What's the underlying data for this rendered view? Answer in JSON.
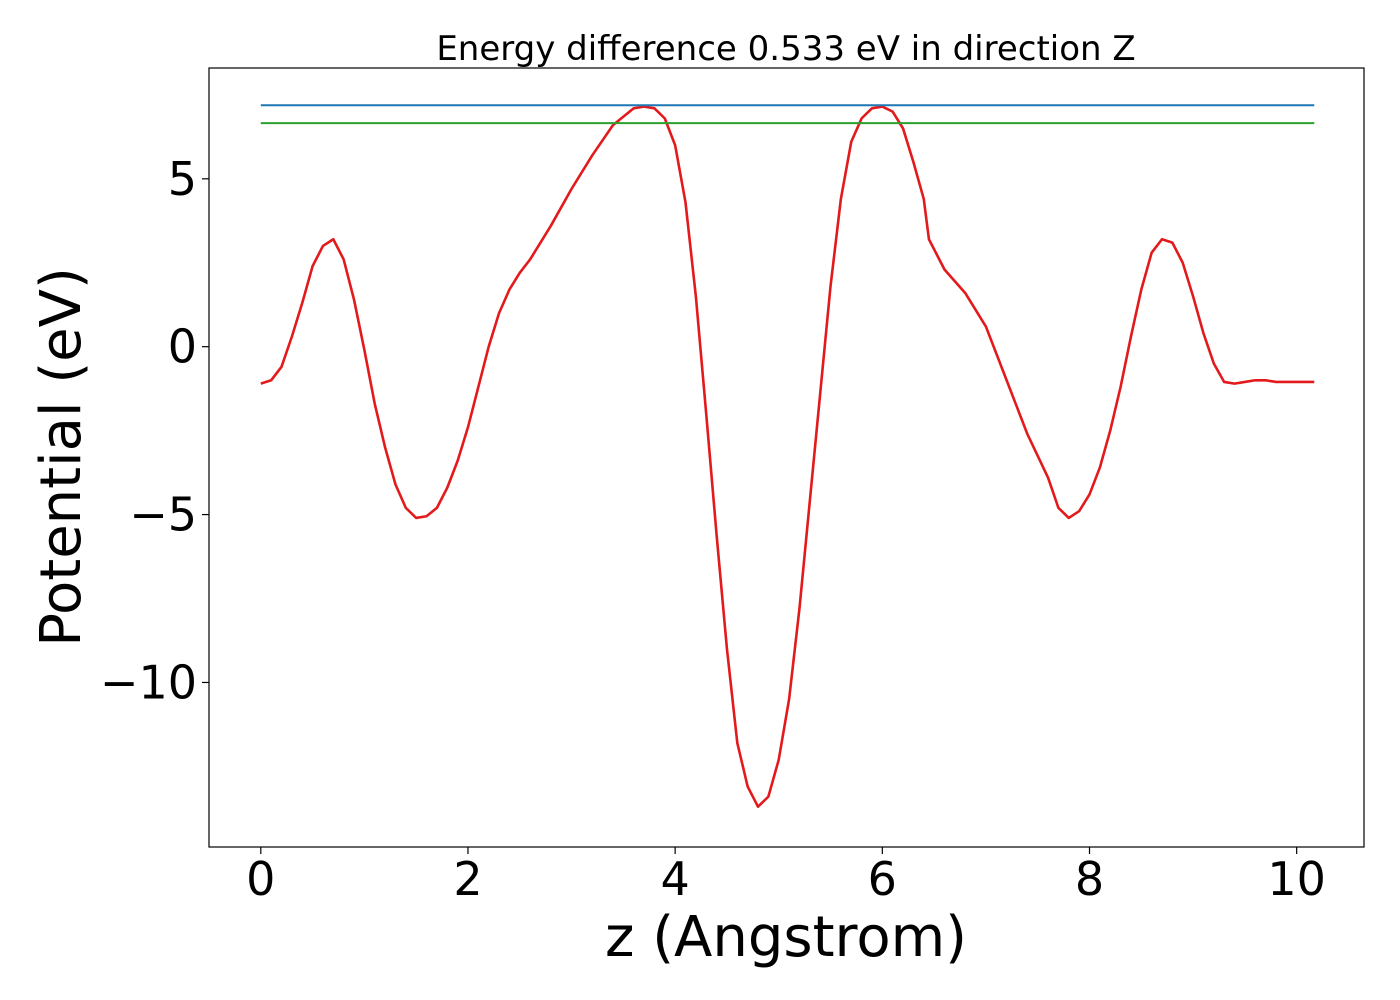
{
  "chart_data": {
    "type": "line",
    "title": "Energy difference 0.533 eV in direction Z",
    "xlabel": "z (Angstrom)",
    "ylabel": "Potential (eV)",
    "xlim": [
      -0.5,
      10.65
    ],
    "ylim": [
      -14.9,
      8.3
    ],
    "xticks": [
      0,
      2,
      4,
      6,
      8,
      10
    ],
    "xtick_labels": [
      "0",
      "2",
      "4",
      "6",
      "8",
      "10"
    ],
    "yticks": [
      5,
      0,
      -5,
      -10
    ],
    "ytick_labels": [
      "5",
      "0",
      "−5",
      "−10"
    ],
    "grid": false,
    "legend": null,
    "series": [
      {
        "color": "#e31a1c",
        "x": [
          0.0,
          0.1,
          0.2,
          0.3,
          0.4,
          0.5,
          0.6,
          0.7,
          0.8,
          0.9,
          1.0,
          1.1,
          1.2,
          1.3,
          1.4,
          1.5,
          1.6,
          1.7,
          1.8,
          1.9,
          2.0,
          2.1,
          2.2,
          2.3,
          2.4,
          2.5,
          2.6,
          2.8,
          3.0,
          3.2,
          3.4,
          3.6,
          3.7,
          3.8,
          3.9,
          4.0,
          4.1,
          4.2,
          4.3,
          4.4,
          4.5,
          4.6,
          4.7,
          4.8,
          4.9,
          5.0,
          5.1,
          5.2,
          5.3,
          5.4,
          5.5,
          5.6,
          5.7,
          5.8,
          5.9,
          6.0,
          6.1,
          6.2,
          6.3,
          6.4,
          6.45,
          6.6,
          6.8,
          7.0,
          7.2,
          7.4,
          7.6,
          7.7,
          7.8,
          7.9,
          8.0,
          8.1,
          8.2,
          8.3,
          8.4,
          8.5,
          8.6,
          8.7,
          8.8,
          8.9,
          9.0,
          9.1,
          9.2,
          9.3,
          9.4,
          9.5,
          9.6,
          9.7,
          9.8,
          9.9,
          10.0,
          10.1,
          10.17
        ],
        "y": [
          -1.1,
          -1.0,
          -0.6,
          0.3,
          1.3,
          2.4,
          3.0,
          3.2,
          2.6,
          1.4,
          -0.1,
          -1.7,
          -3.0,
          -4.1,
          -4.8,
          -5.1,
          -5.05,
          -4.8,
          -4.2,
          -3.4,
          -2.4,
          -1.2,
          0.0,
          1.0,
          1.7,
          2.2,
          2.6,
          3.6,
          4.7,
          5.7,
          6.6,
          7.1,
          7.15,
          7.1,
          6.8,
          6.0,
          4.3,
          1.5,
          -2.0,
          -5.6,
          -9.0,
          -11.8,
          -13.1,
          -13.7,
          -13.4,
          -12.3,
          -10.5,
          -7.8,
          -4.6,
          -1.4,
          1.8,
          4.4,
          6.1,
          6.8,
          7.1,
          7.15,
          7.0,
          6.5,
          5.5,
          4.4,
          3.2,
          2.3,
          1.6,
          0.6,
          -1.0,
          -2.6,
          -3.9,
          -4.8,
          -5.1,
          -4.9,
          -4.4,
          -3.6,
          -2.5,
          -1.2,
          0.3,
          1.7,
          2.8,
          3.2,
          3.1,
          2.5,
          1.5,
          0.4,
          -0.5,
          -1.05,
          -1.1,
          -1.05,
          -1.0,
          -1.0,
          -1.05,
          -1.05,
          -1.05,
          -1.05,
          -1.05
        ]
      },
      {
        "color": "#1f77b4",
        "x": [
          0.0,
          10.17
        ],
        "y": [
          7.19,
          7.19
        ]
      },
      {
        "color": "#2ca02c",
        "x": [
          0.0,
          10.17
        ],
        "y": [
          6.657,
          6.657
        ]
      }
    ]
  }
}
